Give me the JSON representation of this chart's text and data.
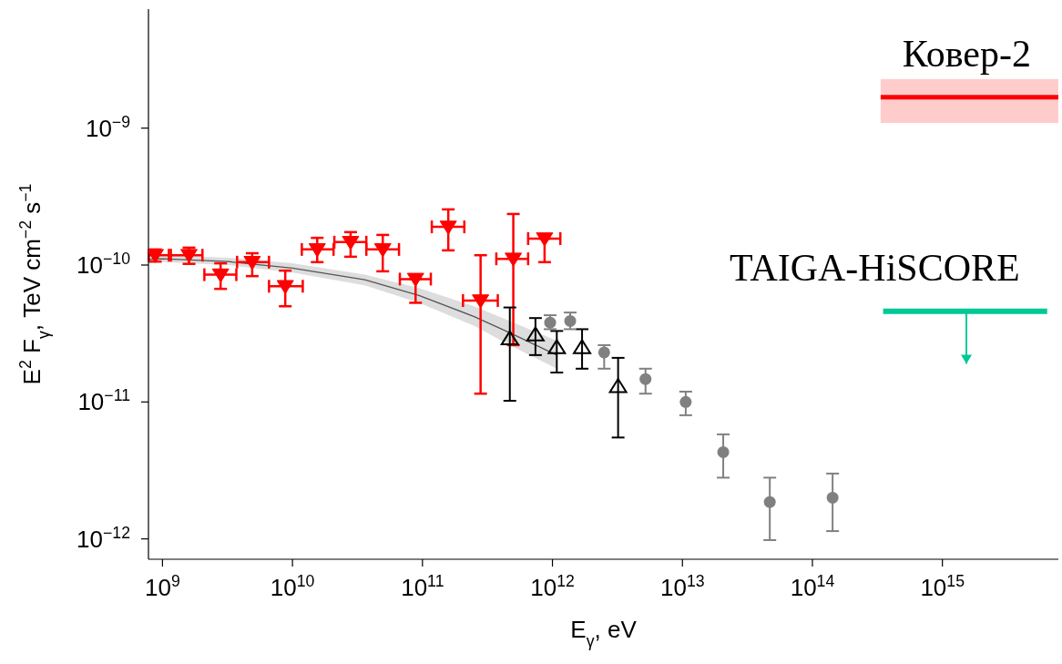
{
  "chart_data": {
    "type": "scatter",
    "xlabel": "E$_{γ}$, eV",
    "ylabel": "E$^{2}$ F$_{γ}$, TeV cm$^{−2}$ s$^{−1}$",
    "log": "xy",
    "xlim": [
      780000000.0,
      7800000000000000.0
    ],
    "ylim": [
      7.1e-13,
      7.4e-09
    ],
    "xticks": [
      {
        "value": 1000000000.0,
        "label": "10$^{9}$"
      },
      {
        "value": 10000000000.0,
        "label": "10$^{10}$"
      },
      {
        "value": 100000000000.0,
        "label": "10$^{11}$"
      },
      {
        "value": 1000000000000.0,
        "label": "10$^{12}$"
      },
      {
        "value": 10000000000000.0,
        "label": "10$^{13}$"
      },
      {
        "value": 100000000000000.0,
        "label": "10$^{14}$"
      },
      {
        "value": 1000000000000000.0,
        "label": "10$^{15}$"
      }
    ],
    "yticks": [
      {
        "value": 1e-12,
        "label": "10$^{−12}$"
      },
      {
        "value": 1e-11,
        "label": "10$^{−11}$"
      },
      {
        "value": 1e-10,
        "label": "10$^{−10}$"
      },
      {
        "value": 1e-09,
        "label": "10$^{−9}$"
      }
    ],
    "series": [
      {
        "marker": "triangle",
        "color": "#ff0000",
        "x": [
          880000000.0,
          1600000000.0,
          2800000000.0,
          4900000000.0,
          8800000000.0,
          15500000000.0,
          28000000000.0,
          49500000000.0,
          88500000000.0,
          158000000000.0,
          280000000000.0,
          500000000000.0,
          870000000000.0
        ],
        "values": [
          1.18e-10,
          1.18e-10,
          8.5e-11,
          1.05e-10,
          7e-11,
          1.3e-10,
          1.47e-10,
          1.3e-10,
          7.9e-11,
          1.9e-10,
          5.5e-11,
          1.11e-10,
          1.56e-10
        ],
        "xerrors": [
          [
            785000000.0,
            1120000000.0
          ],
          [
            1160000000.0,
            2030000000.0
          ],
          [
            2100000000.0,
            3700000000.0
          ],
          [
            3750000000.0,
            6600000000.0
          ],
          [
            6600000000.0,
            12000000000.0
          ],
          [
            11800000000.0,
            20700000000.0
          ],
          [
            21000000000.0,
            37000000000.0
          ],
          [
            37000000000.0,
            66000000000.0
          ],
          [
            67000000000.0,
            116000000000.0
          ],
          [
            118000000000.0,
            210000000000.0
          ],
          [
            205000000000.0,
            380000000000.0
          ],
          [
            370000000000.0,
            650000000000.0
          ],
          [
            650000000000.0,
            1150000000000.0
          ]
        ],
        "errors": [
          [
            1.06e-10,
            1.3e-10
          ],
          [
            1.02e-10,
            1.34e-10
          ],
          [
            6.7e-11,
            1.03e-10
          ],
          [
            8.3e-11,
            1.22e-10
          ],
          [
            5e-11,
            9.1e-11
          ],
          [
            1.05e-10,
            1.58e-10
          ],
          [
            1.15e-10,
            1.74e-10
          ],
          [
            9e-11,
            1.66e-10
          ],
          [
            5.3e-11,
            7.9e-11
          ],
          [
            1.28e-10,
            2.55e-10
          ],
          [
            1.15e-11,
            1.18e-10
          ],
          [
            2.6e-11,
            2.36e-10
          ],
          [
            1.05e-10,
            1.56e-10
          ]
        ]
      },
      {
        "marker": "triangle",
        "color": "#000000",
        "x": [
          470000000000.0,
          740000000000.0,
          1080000000000.0,
          1690000000000.0,
          3200000000000.0
        ],
        "values": [
          2.9e-11,
          3.1e-11,
          2.5e-11,
          2.5e-11,
          1.3e-11
        ],
        "errors": [
          [
            1.02e-11,
            4.9e-11
          ],
          [
            2.2e-11,
            4.1e-11
          ],
          [
            1.64e-11,
            3.3e-11
          ],
          [
            1.75e-11,
            3.4e-11
          ],
          [
            5.5e-12,
            2.1e-11
          ]
        ]
      },
      {
        "marker": "circle",
        "color": "#808080",
        "x": [
          960000000000.0,
          1370000000000.0,
          2500000000000.0,
          5200000000000.0,
          10600000000000.0,
          20600000000000.0,
          47000000000000.0,
          143000000000000.0
        ],
        "values": [
          3.8e-11,
          3.9e-11,
          2.3e-11,
          1.47e-11,
          1e-11,
          4.3e-12,
          1.86e-12,
          2e-12
        ],
        "errors": [
          [
            3.4e-11,
            4.3e-11
          ],
          [
            3.4e-11,
            4.5e-11
          ],
          [
            1.75e-11,
            2.6e-11
          ],
          [
            1.15e-11,
            1.75e-11
          ],
          [
            8e-12,
            1.19e-11
          ],
          [
            2.8e-12,
            5.8e-12
          ],
          [
            9.8e-13,
            2.8e-12
          ],
          [
            1.14e-12,
            3e-12
          ]
        ]
      },
      {
        "type": "line",
        "marker": "none",
        "color": "#555555",
        "x": [
          785000000.0,
          1000000000.0,
          3200000000.0,
          10000000000.0,
          36000000000.0,
          94000000000.0,
          250000000000.0,
          470000000000.0,
          1080000000000.0
        ],
        "values": [
          1.1e-10,
          1.11e-10,
          1.06e-10,
          9.5e-11,
          7.8e-11,
          6e-11,
          4.2e-11,
          3.2e-11,
          2.2e-11
        ],
        "lower": [
          1.04e-10,
          1.05e-10,
          1e-10,
          8.8e-11,
          7.1e-11,
          5.3e-11,
          3.6e-11,
          2.6e-11,
          1.75e-11
        ],
        "upper": [
          1.17e-10,
          1.18e-10,
          1.13e-10,
          1.03e-10,
          8.5e-11,
          6.8e-11,
          5e-11,
          3.9e-11,
          2.8e-11
        ]
      },
      {
        "type": "line",
        "marker": "none",
        "name": "Ковер-2",
        "color": "#ff0000",
        "x": [
          335000000000000.0,
          7800000000000000.0
        ],
        "values": [
          1.68e-09,
          1.68e-09
        ],
        "lower": [
          1.09e-09,
          1.09e-09
        ],
        "upper": [
          2.28e-09,
          2.28e-09
        ]
      },
      {
        "type": "line",
        "marker": "none",
        "name": "TAIGA-HiSCORE",
        "color": "#00c896",
        "x": [
          350000000000000.0,
          1530000000000000.0,
          6400000000000000.0
        ],
        "values": [
          4.6e-11,
          4.6e-11,
          4.6e-11
        ],
        "errors": [
          null,
          [
            1.9e-11,
            4.6e-11
          ],
          null
        ]
      }
    ]
  }
}
